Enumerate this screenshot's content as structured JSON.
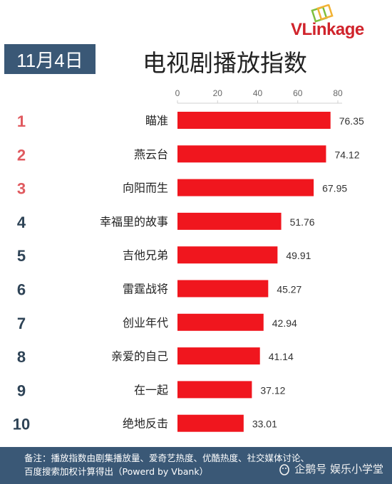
{
  "brand": {
    "logo_text": "VLinkage"
  },
  "header": {
    "date": "11月4日",
    "title": "电视剧播放指数"
  },
  "colors": {
    "bar": "#f0161e",
    "rank_top3": "#e05a5f",
    "rank_rest": "#2e4356",
    "banner": "#3a5876"
  },
  "chart_data": {
    "type": "bar",
    "orientation": "horizontal",
    "title": "电视剧播放指数",
    "categories": [
      "瞄准",
      "燕云台",
      "向阳而生",
      "幸福里的故事",
      "吉他兄弟",
      "雷霆战将",
      "创业年代",
      "亲爱的自己",
      "在一起",
      "绝地反击"
    ],
    "ranks": [
      "1",
      "2",
      "3",
      "4",
      "5",
      "6",
      "7",
      "8",
      "9",
      "10"
    ],
    "values": [
      76.35,
      74.12,
      67.95,
      51.76,
      49.91,
      45.27,
      42.94,
      41.14,
      37.12,
      33.01
    ],
    "value_labels": [
      "76.35",
      "74.12",
      "67.95",
      "51.76",
      "49.91",
      "45.27",
      "42.94",
      "41.14",
      "37.12",
      "33.01"
    ],
    "xticks": [
      "0",
      "20",
      "40",
      "60",
      "80"
    ],
    "xlim": [
      0,
      80
    ],
    "grid": false,
    "legend": "none"
  },
  "footer": {
    "line1": "备注：播放指数由剧集播放量、爱奇艺热度、优酷热度、社交媒体讨论、",
    "line2": "百度搜索加权计算得出（Powerd by Vbank）"
  },
  "watermark": {
    "text": "企鹅号 娱乐小学堂",
    "icon": "penguin-icon"
  }
}
